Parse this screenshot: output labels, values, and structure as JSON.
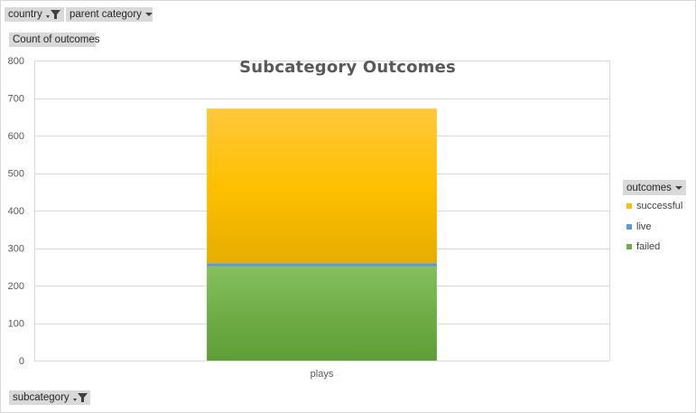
{
  "filters": {
    "country": {
      "label": "country",
      "icon": "filter-dropdown-icon"
    },
    "parent_category": {
      "label": "parent category",
      "icon": "dropdown-arrow-icon"
    },
    "values": {
      "label": "Count of outcomes"
    },
    "subcategory": {
      "label": "subcategory",
      "icon": "filter-dropdown-icon"
    }
  },
  "legend_header": {
    "label": "outcomes",
    "icon": "dropdown-arrow-icon"
  },
  "chart_data": {
    "type": "bar",
    "stacked": true,
    "title": "Subcategory Outcomes",
    "xlabel": "",
    "ylabel": "",
    "categories": [
      "plays"
    ],
    "ylim": [
      0,
      800
    ],
    "yticks": [
      0,
      100,
      200,
      300,
      400,
      500,
      600,
      700,
      800
    ],
    "grid": true,
    "legend_position": "right",
    "series": [
      {
        "name": "failed",
        "values": [
          252
        ],
        "color": "#70ad47"
      },
      {
        "name": "live",
        "values": [
          8
        ],
        "color": "#5b9bd5"
      },
      {
        "name": "successful",
        "values": [
          412
        ],
        "color": "#ffc000"
      }
    ],
    "legend_order": [
      "successful",
      "live",
      "failed"
    ]
  }
}
